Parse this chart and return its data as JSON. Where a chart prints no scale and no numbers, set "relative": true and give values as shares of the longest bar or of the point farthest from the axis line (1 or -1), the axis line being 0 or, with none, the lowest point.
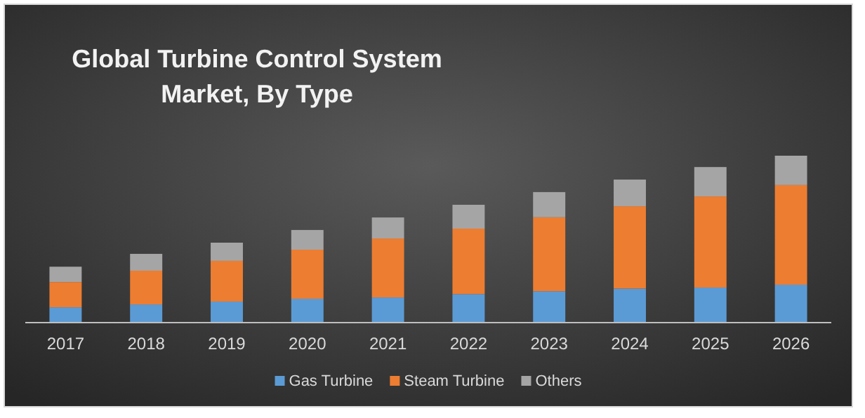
{
  "chart_data": {
    "type": "bar",
    "title": "Global Turbine Control System Market, By Type",
    "categories": [
      "2017",
      "2018",
      "2019",
      "2020",
      "2021",
      "2022",
      "2023",
      "2024",
      "2025",
      "2026"
    ],
    "stacked": true,
    "relative": true,
    "legend": "bottom",
    "series": [
      {
        "name": "Gas Turbine",
        "color": "#5b9bd5",
        "values": [
          0.092,
          0.109,
          0.126,
          0.143,
          0.151,
          0.171,
          0.188,
          0.204,
          0.21,
          0.227
        ]
      },
      {
        "name": "Steam Turbine",
        "color": "#ed7d31",
        "values": [
          0.151,
          0.202,
          0.244,
          0.294,
          0.353,
          0.392,
          0.443,
          0.493,
          0.546,
          0.597
        ]
      },
      {
        "name": "Others",
        "color": "#a5a5a5",
        "values": [
          0.092,
          0.101,
          0.109,
          0.118,
          0.126,
          0.143,
          0.151,
          0.16,
          0.176,
          0.176
        ]
      }
    ]
  }
}
